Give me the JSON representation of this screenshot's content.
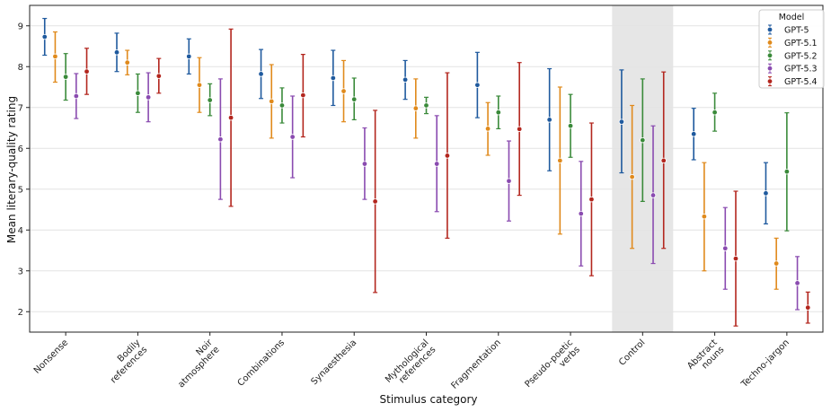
{
  "chart_data": {
    "type": "scatter",
    "title": "",
    "xlabel": "Stimulus category",
    "ylabel": "Mean literary-quality rating",
    "ylim": [
      1.5,
      9.5
    ],
    "yticks": [
      2,
      3,
      4,
      5,
      6,
      7,
      8,
      9
    ],
    "grid": true,
    "legend_title": "Model",
    "legend_position": "top-right",
    "highlighted_category": "Control",
    "categories": [
      "Nonsense",
      "Bodily\nreferences",
      "Noir\natmosphere",
      "Combinations",
      "Synaesthesia",
      "Mythological\nreferences",
      "Fragmentation",
      "Pseudo-poetic\nverbs",
      "Control",
      "Abstract\nnouns",
      "Techno-jargon"
    ],
    "series": [
      {
        "name": "GPT-5",
        "color": "#1f5a9e",
        "values": [
          8.73,
          8.35,
          8.25,
          7.82,
          7.72,
          7.68,
          7.55,
          6.7,
          6.65,
          6.35,
          4.9
        ],
        "low": [
          8.28,
          7.88,
          7.82,
          7.22,
          7.05,
          7.2,
          6.75,
          5.45,
          5.4,
          5.72,
          4.15
        ],
        "high": [
          9.18,
          8.82,
          8.68,
          8.42,
          8.4,
          8.15,
          8.35,
          7.95,
          7.92,
          6.98,
          5.65
        ]
      },
      {
        "name": "GPT-5.1",
        "color": "#e08a1c",
        "values": [
          8.25,
          8.1,
          7.55,
          7.15,
          7.4,
          6.98,
          6.48,
          5.7,
          5.3,
          4.33,
          3.18
        ],
        "low": [
          7.62,
          7.8,
          6.88,
          6.25,
          6.65,
          6.25,
          5.83,
          3.9,
          3.55,
          3.0,
          2.55
        ],
        "high": [
          8.85,
          8.4,
          8.22,
          8.05,
          8.15,
          7.7,
          7.12,
          7.5,
          7.05,
          5.65,
          3.8
        ]
      },
      {
        "name": "GPT-5.2",
        "color": "#3a8a3a",
        "values": [
          7.75,
          7.35,
          7.18,
          7.05,
          7.2,
          7.05,
          6.88,
          6.55,
          6.2,
          6.88,
          5.43
        ],
        "low": [
          7.18,
          6.88,
          6.8,
          6.62,
          6.7,
          6.85,
          6.48,
          5.78,
          4.7,
          6.42,
          3.98
        ],
        "high": [
          8.32,
          7.82,
          7.58,
          7.48,
          7.72,
          7.25,
          7.28,
          7.32,
          7.7,
          7.35,
          6.87
        ]
      },
      {
        "name": "GPT-5.3",
        "color": "#8a4bb0",
        "values": [
          7.28,
          7.25,
          6.22,
          6.28,
          5.62,
          5.62,
          5.2,
          4.4,
          4.85,
          3.55,
          2.7
        ],
        "low": [
          6.73,
          6.65,
          4.75,
          5.28,
          4.75,
          4.45,
          4.22,
          3.12,
          3.18,
          2.55,
          2.05
        ],
        "high": [
          7.83,
          7.85,
          7.7,
          7.28,
          6.5,
          6.8,
          6.18,
          5.68,
          6.55,
          4.55,
          3.35
        ]
      },
      {
        "name": "GPT-5.4",
        "color": "#b3261e",
        "values": [
          7.88,
          7.77,
          6.75,
          7.3,
          4.7,
          5.82,
          6.47,
          4.75,
          5.7,
          3.3,
          2.1
        ],
        "low": [
          7.32,
          7.35,
          4.58,
          6.28,
          2.47,
          3.8,
          4.85,
          2.88,
          3.55,
          1.65,
          1.72
        ],
        "high": [
          8.45,
          8.2,
          8.92,
          8.3,
          6.93,
          7.85,
          8.1,
          6.62,
          7.87,
          4.95,
          2.48
        ]
      }
    ]
  }
}
